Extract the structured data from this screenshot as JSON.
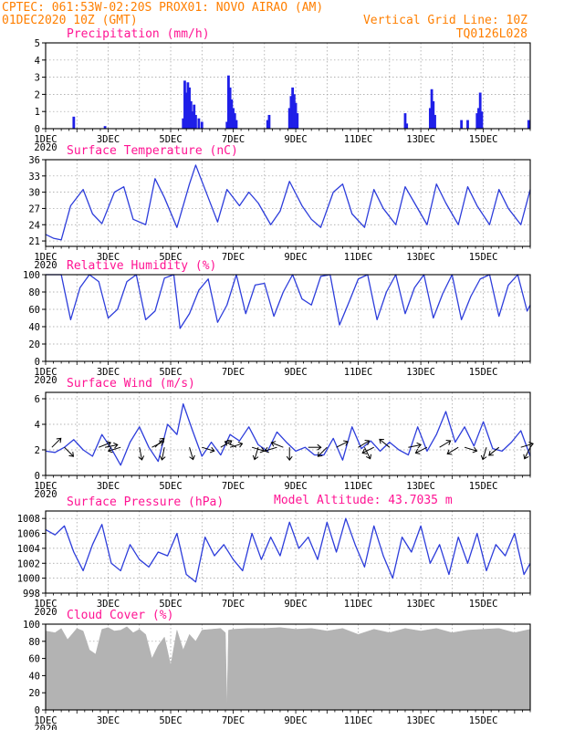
{
  "header": {
    "line1": "CPTEC:   061:53W-02:20S   PROX01: NOVO AIRAO (AM)",
    "line2_left": "01DEC2020 10Z (GMT)",
    "line2_right": "Vertical Grid Line: 10Z",
    "line3_right": "TQ0126L028",
    "altitude": "Model Altitude: 43.7035 m"
  },
  "year_label": "2020",
  "colors": {
    "header": "#ff7f00",
    "title": "#ff1493",
    "line": "#2d3ddb",
    "bar": "#1f1fe8",
    "cloud": "#b3b3b3",
    "arrow": "#000000"
  },
  "chart_data": [
    {
      "type": "bar",
      "title": "Precipitation (mm/h)",
      "xlabels": [
        "1DEC",
        "3DEC",
        "5DEC",
        "7DEC",
        "9DEC",
        "11DEC",
        "13DEC",
        "15DEC"
      ],
      "x_range_days": [
        0,
        15.5
      ],
      "ylim": [
        0,
        5
      ],
      "yticks": [
        0,
        1,
        2,
        3,
        4,
        5
      ],
      "bars": [
        [
          0.9,
          0.7
        ],
        [
          1.9,
          0.15
        ],
        [
          4.4,
          0.6
        ],
        [
          4.45,
          2.8
        ],
        [
          4.5,
          2.1
        ],
        [
          4.55,
          2.7
        ],
        [
          4.6,
          2.4
        ],
        [
          4.65,
          1.6
        ],
        [
          4.7,
          1.0
        ],
        [
          4.75,
          1.4
        ],
        [
          4.8,
          0.8
        ],
        [
          4.9,
          0.6
        ],
        [
          5.0,
          0.4
        ],
        [
          5.8,
          0.4
        ],
        [
          5.85,
          3.1
        ],
        [
          5.9,
          2.4
        ],
        [
          5.95,
          1.7
        ],
        [
          6.0,
          1.2
        ],
        [
          6.05,
          0.9
        ],
        [
          6.1,
          0.5
        ],
        [
          7.1,
          0.5
        ],
        [
          7.15,
          0.8
        ],
        [
          7.8,
          1.2
        ],
        [
          7.85,
          1.9
        ],
        [
          7.9,
          2.4
        ],
        [
          7.95,
          2.0
        ],
        [
          8.0,
          1.5
        ],
        [
          8.05,
          0.9
        ],
        [
          11.5,
          0.9
        ],
        [
          11.55,
          0.3
        ],
        [
          12.3,
          1.2
        ],
        [
          12.35,
          2.3
        ],
        [
          12.4,
          1.6
        ],
        [
          12.45,
          0.8
        ],
        [
          13.3,
          0.5
        ],
        [
          13.5,
          0.5
        ],
        [
          13.8,
          0.9
        ],
        [
          13.85,
          1.2
        ],
        [
          13.9,
          2.1
        ],
        [
          13.95,
          1.0
        ],
        [
          15.45,
          0.5
        ]
      ]
    },
    {
      "type": "line",
      "title": "Surface Temperature (nC)",
      "xlabels": [
        "1DEC",
        "3DEC",
        "5DEC",
        "7DEC",
        "9DEC",
        "11DEC",
        "13DEC",
        "15DEC"
      ],
      "x_range_days": [
        0,
        15.5
      ],
      "ylim": [
        20,
        36
      ],
      "yticks": [
        21,
        24,
        27,
        30,
        33,
        36
      ],
      "x": [
        0,
        0.25,
        0.5,
        0.8,
        1.2,
        1.5,
        1.8,
        2.2,
        2.5,
        2.8,
        3.2,
        3.5,
        3.8,
        4.2,
        4.6,
        4.8,
        5.2,
        5.5,
        5.8,
        6.2,
        6.5,
        6.8,
        7.2,
        7.5,
        7.8,
        8.2,
        8.5,
        8.8,
        9.2,
        9.5,
        9.8,
        10.2,
        10.5,
        10.8,
        11.2,
        11.5,
        11.8,
        12.2,
        12.5,
        12.8,
        13.2,
        13.5,
        13.8,
        14.2,
        14.5,
        14.8,
        15.2,
        15.5
      ],
      "values": [
        22.2,
        21.5,
        21.2,
        27.5,
        30.5,
        26,
        24.2,
        30,
        31,
        25,
        24,
        32.5,
        29,
        23.5,
        31.5,
        35,
        29,
        24.5,
        30.5,
        27.5,
        30,
        28,
        24,
        26.5,
        32,
        27.5,
        25,
        23.5,
        30,
        31.5,
        26,
        23.5,
        30.5,
        27,
        24,
        31,
        28,
        24,
        31.5,
        28,
        24,
        31,
        27.5,
        24,
        30.5,
        27,
        24,
        30.5
      ]
    },
    {
      "type": "line",
      "title": "Relative Humidity (%)",
      "xlabels": [
        "1DEC",
        "3DEC",
        "5DEC",
        "7DEC",
        "9DEC",
        "11DEC",
        "13DEC",
        "15DEC"
      ],
      "x_range_days": [
        0,
        15.5
      ],
      "ylim": [
        0,
        100
      ],
      "yticks": [
        0,
        20,
        40,
        60,
        80,
        100
      ],
      "x": [
        0,
        0.3,
        0.5,
        0.8,
        1.1,
        1.4,
        1.7,
        2.0,
        2.3,
        2.6,
        2.9,
        3.2,
        3.5,
        3.8,
        4.1,
        4.3,
        4.6,
        4.9,
        5.2,
        5.5,
        5.8,
        6.1,
        6.4,
        6.7,
        7.0,
        7.3,
        7.6,
        7.9,
        8.2,
        8.5,
        8.8,
        9.1,
        9.4,
        9.7,
        10.0,
        10.3,
        10.6,
        10.9,
        11.2,
        11.5,
        11.8,
        12.1,
        12.4,
        12.7,
        13.0,
        13.3,
        13.6,
        13.9,
        14.2,
        14.5,
        14.8,
        15.1,
        15.4,
        15.5
      ],
      "values": [
        100,
        100,
        100,
        48,
        85,
        100,
        92,
        50,
        60,
        92,
        100,
        48,
        58,
        96,
        100,
        38,
        55,
        82,
        95,
        45,
        65,
        100,
        55,
        88,
        90,
        52,
        80,
        100,
        72,
        65,
        98,
        100,
        42,
        68,
        95,
        100,
        48,
        80,
        100,
        55,
        85,
        100,
        50,
        78,
        100,
        48,
        75,
        95,
        100,
        52,
        88,
        100,
        58,
        65
      ]
    },
    {
      "type": "line",
      "title": "Surface Wind (m/s)",
      "xlabels": [
        "1DEC",
        "3DEC",
        "5DEC",
        "7DEC",
        "9DEC",
        "11DEC",
        "13DEC",
        "15DEC"
      ],
      "x_range_days": [
        0,
        15.5
      ],
      "ylim": [
        0,
        6.5
      ],
      "yticks": [
        0,
        2,
        4,
        6
      ],
      "x": [
        0,
        0.3,
        0.6,
        0.9,
        1.2,
        1.5,
        1.8,
        2.1,
        2.4,
        2.7,
        3.0,
        3.3,
        3.6,
        3.9,
        4.2,
        4.4,
        4.7,
        5.0,
        5.3,
        5.6,
        5.9,
        6.2,
        6.5,
        6.8,
        7.1,
        7.4,
        7.7,
        8.0,
        8.3,
        8.6,
        8.9,
        9.2,
        9.5,
        9.8,
        10.1,
        10.4,
        10.7,
        11.0,
        11.3,
        11.6,
        11.9,
        12.2,
        12.5,
        12.8,
        13.1,
        13.4,
        13.7,
        14.0,
        14.3,
        14.6,
        14.9,
        15.2,
        15.5
      ],
      "values": [
        1.9,
        1.8,
        2.2,
        2.8,
        2.0,
        1.5,
        3.2,
        2.1,
        0.8,
        2.6,
        3.8,
        2.2,
        1.1,
        4.0,
        3.2,
        5.6,
        3.5,
        1.5,
        2.6,
        1.6,
        3.2,
        2.7,
        3.8,
        2.4,
        1.9,
        3.4,
        2.6,
        1.9,
        2.2,
        1.6,
        1.6,
        2.9,
        1.2,
        3.8,
        2.1,
        2.7,
        1.9,
        2.6,
        2.0,
        1.6,
        3.8,
        1.9,
        3.2,
        5.0,
        2.6,
        3.8,
        2.3,
        4.2,
        2.1,
        1.9,
        2.6,
        3.5,
        1.5
      ],
      "arrows": [
        [
          0.2,
          1,
          1
        ],
        [
          0.6,
          1,
          -1
        ],
        [
          1.7,
          1,
          0.4
        ],
        [
          1.9,
          1,
          0.2
        ],
        [
          2.4,
          -1,
          -0.3
        ],
        [
          3.0,
          0.2,
          -1
        ],
        [
          3.4,
          1,
          0.5
        ],
        [
          3.5,
          0.7,
          0.7
        ],
        [
          3.8,
          -0.2,
          -1
        ],
        [
          4.6,
          0.3,
          -1
        ],
        [
          5.0,
          1,
          -0.3
        ],
        [
          5.6,
          1,
          0.6
        ],
        [
          5.9,
          1,
          0.3
        ],
        [
          6.1,
          -1,
          0.5
        ],
        [
          6.6,
          1,
          -0.3
        ],
        [
          6.8,
          -0.3,
          -1
        ],
        [
          7.4,
          -1,
          -0.3
        ],
        [
          7.6,
          -1,
          0.4
        ],
        [
          7.8,
          0,
          -1
        ],
        [
          8.4,
          1,
          0
        ],
        [
          9.0,
          -1,
          -1
        ],
        [
          9.3,
          1,
          0.5
        ],
        [
          10.0,
          1,
          0.6
        ],
        [
          10.2,
          0.5,
          -1
        ],
        [
          10.5,
          -1,
          -0.5
        ],
        [
          11.0,
          -1,
          0.8
        ],
        [
          11.6,
          1,
          0.2
        ],
        [
          12.2,
          -1,
          -0.5
        ],
        [
          12.6,
          1,
          0.6
        ],
        [
          13.2,
          -1,
          -0.6
        ],
        [
          13.4,
          1,
          -0.3
        ],
        [
          14.1,
          -0.3,
          -1
        ],
        [
          14.5,
          -1,
          -0.8
        ],
        [
          15.2,
          1,
          0.3
        ],
        [
          15.5,
          -0.5,
          -1
        ]
      ]
    },
    {
      "type": "line",
      "title": "Surface Pressure (hPa)",
      "xlabels": [
        "1DEC",
        "3DEC",
        "5DEC",
        "7DEC",
        "9DEC",
        "11DEC",
        "13DEC",
        "15DEC"
      ],
      "x_range_days": [
        0,
        15.5
      ],
      "ylim": [
        998,
        1009
      ],
      "yticks": [
        998,
        1000,
        1002,
        1004,
        1006,
        1008
      ],
      "x": [
        0,
        0.3,
        0.6,
        0.9,
        1.2,
        1.5,
        1.8,
        2.1,
        2.4,
        2.7,
        3.0,
        3.3,
        3.6,
        3.9,
        4.2,
        4.5,
        4.8,
        5.1,
        5.4,
        5.7,
        6.0,
        6.3,
        6.6,
        6.9,
        7.2,
        7.5,
        7.8,
        8.1,
        8.4,
        8.7,
        9.0,
        9.3,
        9.6,
        9.9,
        10.2,
        10.5,
        10.8,
        11.1,
        11.4,
        11.7,
        12.0,
        12.3,
        12.6,
        12.9,
        13.2,
        13.5,
        13.8,
        14.1,
        14.4,
        14.7,
        15.0,
        15.3,
        15.5
      ],
      "values": [
        1006.5,
        1005.8,
        1007.0,
        1003.5,
        1001.0,
        1004.5,
        1007.2,
        1002.0,
        1001.0,
        1004.5,
        1002.5,
        1001.5,
        1003.5,
        1003.0,
        1006.0,
        1000.5,
        999.5,
        1005.5,
        1003.0,
        1004.5,
        1002.5,
        1001.0,
        1006.0,
        1002.5,
        1005.5,
        1003.0,
        1007.5,
        1004.0,
        1005.5,
        1002.5,
        1007.5,
        1003.5,
        1008.0,
        1004.5,
        1001.5,
        1007.0,
        1003.0,
        1000.0,
        1005.5,
        1003.5,
        1007.0,
        1002.0,
        1004.5,
        1000.5,
        1005.5,
        1002.0,
        1006.0,
        1001.0,
        1004.5,
        1003.0,
        1006.0,
        1000.5,
        1002.0
      ]
    },
    {
      "type": "area",
      "title": "Cloud Cover (%)",
      "xlabels": [
        "1DEC",
        "3DEC",
        "5DEC",
        "7DEC",
        "9DEC",
        "11DEC",
        "13DEC",
        "15DEC"
      ],
      "x_range_days": [
        0,
        15.5
      ],
      "ylim": [
        0,
        100
      ],
      "yticks": [
        0,
        20,
        40,
        60,
        80,
        100
      ],
      "x": [
        0,
        0.3,
        0.5,
        0.7,
        1.0,
        1.2,
        1.4,
        1.6,
        1.8,
        2.0,
        2.2,
        2.4,
        2.6,
        2.8,
        3.0,
        3.2,
        3.4,
        3.6,
        3.8,
        4.0,
        4.2,
        4.4,
        4.6,
        4.8,
        5.0,
        5.3,
        5.6,
        5.75,
        5.8,
        5.85,
        6.0,
        6.5,
        7.0,
        7.5,
        8.0,
        8.5,
        9.0,
        9.5,
        10.0,
        10.5,
        11.0,
        11.5,
        12.0,
        12.5,
        13.0,
        13.5,
        14.0,
        14.5,
        15.0,
        15.5
      ],
      "values": [
        92,
        90,
        95,
        82,
        95,
        92,
        70,
        65,
        94,
        96,
        92,
        93,
        97,
        90,
        94,
        88,
        60,
        75,
        85,
        52,
        93,
        70,
        88,
        80,
        93,
        94,
        95,
        90,
        2,
        93,
        94,
        95,
        95,
        96,
        94,
        95,
        92,
        95,
        88,
        94,
        90,
        95,
        92,
        95,
        90,
        93,
        94,
        95,
        90,
        94
      ]
    }
  ]
}
